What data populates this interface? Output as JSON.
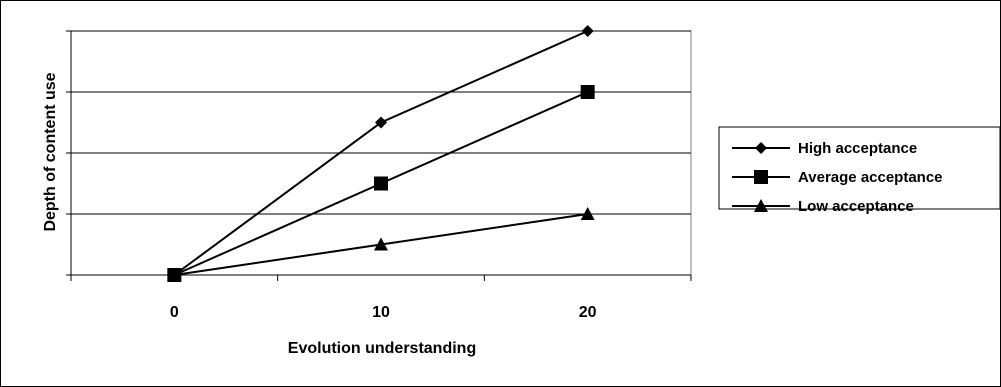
{
  "chart_data": {
    "type": "line",
    "title": "",
    "xlabel": "Evolution understanding",
    "ylabel": "Depth of content use",
    "x": [
      0,
      10,
      20
    ],
    "xlim": [
      -5,
      25
    ],
    "ylim": [
      0,
      4
    ],
    "grid": true,
    "legend_position": "right",
    "series": [
      {
        "name": "High acceptance",
        "marker": "diamond",
        "values": [
          0,
          2.5,
          4
        ]
      },
      {
        "name": "Average acceptance",
        "marker": "square",
        "values": [
          0,
          1.5,
          3
        ]
      },
      {
        "name": "Low acceptance",
        "marker": "triangle",
        "values": [
          0,
          0.5,
          1
        ]
      }
    ],
    "colors": {
      "line": "#000000",
      "grid": "#000000",
      "plot_border": "#808080"
    }
  }
}
